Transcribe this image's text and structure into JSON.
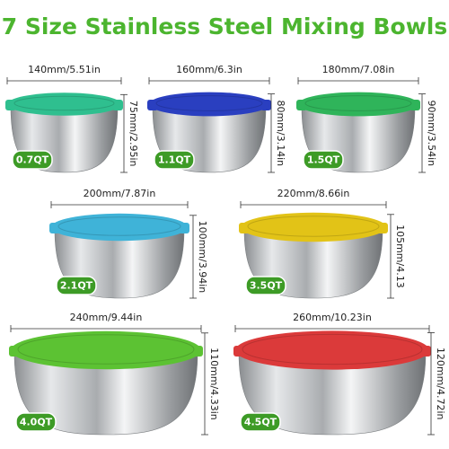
{
  "title": "7 Size Stainless Steel Mixing Bowls",
  "bowls": [
    {
      "width": "140mm/5.51in",
      "height": "75mm/2.95in",
      "capacity": "0.7QT",
      "color": "#2fbf8f"
    },
    {
      "width": "160mm/6.3in",
      "height": "80mm/3.14in",
      "capacity": "1.1QT",
      "color": "#2a3fc0"
    },
    {
      "width": "180mm/7.08in",
      "height": "90mm/3.54in",
      "capacity": "1.5QT",
      "color": "#2fb45a"
    },
    {
      "width": "200mm/7.87in",
      "height": "100mm/3.94in",
      "capacity": "2.1QT",
      "color": "#3fb3d8"
    },
    {
      "width": "220mm/8.66in",
      "height": "105mm/4.13",
      "capacity": "3.5QT",
      "color": "#e2c317"
    },
    {
      "width": "240mm/9.44in",
      "height": "110mm/4.33in",
      "capacity": "4.0QT",
      "color": "#5cc233"
    },
    {
      "width": "260mm/10.23in",
      "height": "120mm/4.72in",
      "capacity": "4.5QT",
      "color": "#db3a3a"
    }
  ]
}
